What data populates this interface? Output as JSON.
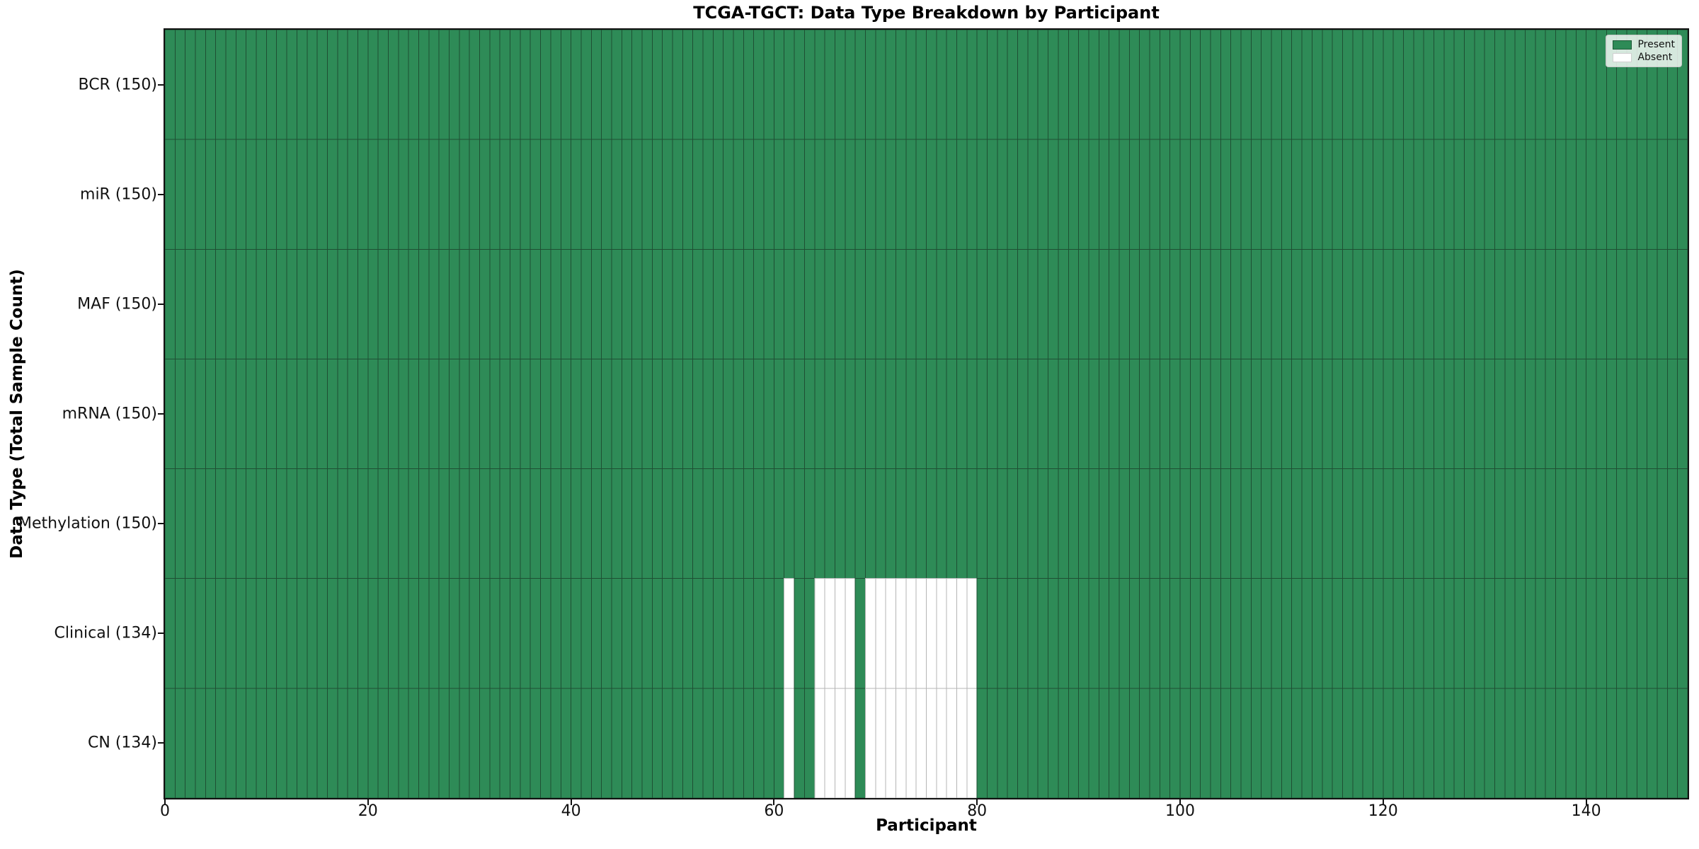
{
  "title": "TCGA-TGCT: Data Type Breakdown by Participant",
  "x_axis_label": "Participant",
  "y_axis_label": "Data Type (Total Sample Count)",
  "legend": {
    "present_label": "Present",
    "absent_label": "Absent"
  },
  "colors": {
    "present": "#2e8b57",
    "absent": "#ffffff",
    "grid_on_present": "#1e4f33",
    "grid_on_absent": "#b5b5b5",
    "present_swatch_edge": "#1d5937",
    "absent_swatch_edge": "#d0d0d0",
    "spine": "#111111",
    "background": "#ffffff"
  },
  "chart_data": {
    "type": "heatmap",
    "title": "TCGA-TGCT: Data Type Breakdown by Participant",
    "xlabel": "Participant",
    "ylabel": "Data Type (Total Sample Count)",
    "n_participants": 150,
    "x_axis": {
      "ticks": [
        0,
        20,
        40,
        60,
        80,
        100,
        120,
        140
      ],
      "range": [
        0,
        150
      ]
    },
    "legend_entries": [
      {
        "label": "Present",
        "color": "#2e8b57"
      },
      {
        "label": "Absent",
        "color": "#ffffff"
      }
    ],
    "legend_position": "upper right",
    "grid": true,
    "rows": [
      {
        "label": "BCR (150)",
        "data_type": "BCR",
        "total_samples": 150,
        "absent_participants": []
      },
      {
        "label": "miR (150)",
        "data_type": "miR",
        "total_samples": 150,
        "absent_participants": []
      },
      {
        "label": "MAF (150)",
        "data_type": "MAF",
        "total_samples": 150,
        "absent_participants": []
      },
      {
        "label": "mRNA (150)",
        "data_type": "mRNA",
        "total_samples": 150,
        "absent_participants": []
      },
      {
        "label": "Methylation (150)",
        "data_type": "Methylation",
        "total_samples": 150,
        "absent_participants": []
      },
      {
        "label": "Clinical (134)",
        "data_type": "Clinical",
        "total_samples": 134,
        "absent_participants": [
          61,
          64,
          65,
          66,
          67,
          69,
          70,
          71,
          72,
          73,
          74,
          75,
          76,
          77,
          78,
          79
        ]
      },
      {
        "label": "CN (134)",
        "data_type": "CN",
        "total_samples": 134,
        "absent_participants": [
          61,
          64,
          65,
          66,
          67,
          69,
          70,
          71,
          72,
          73,
          74,
          75,
          76,
          77,
          78,
          79
        ]
      }
    ]
  }
}
